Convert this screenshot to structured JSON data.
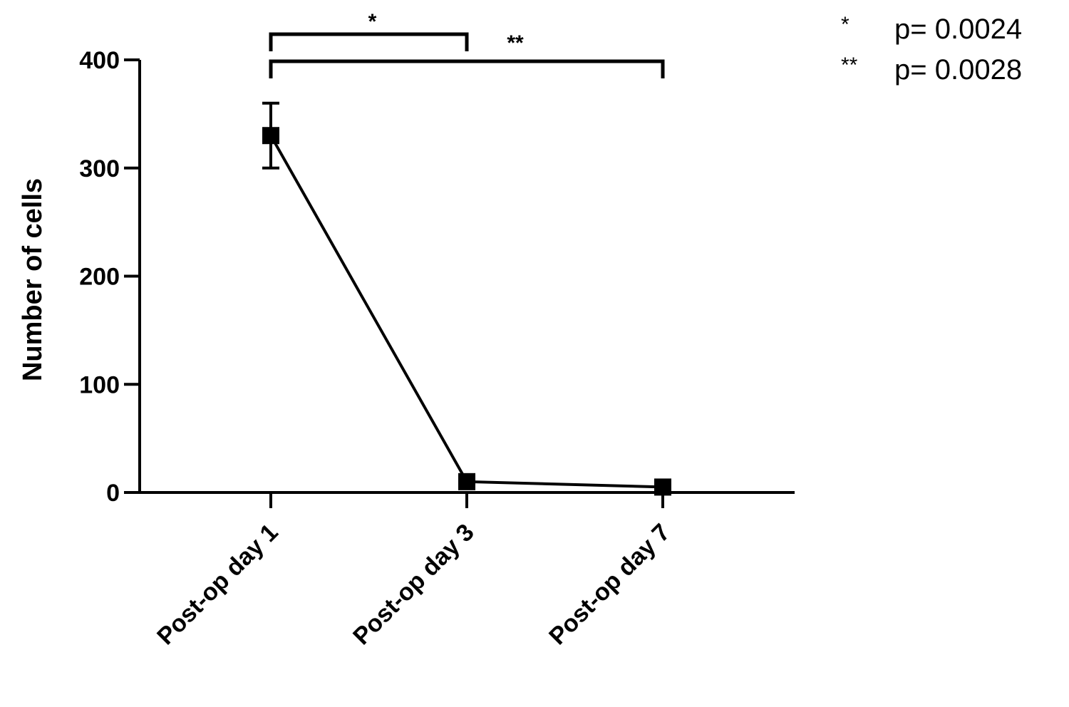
{
  "chart_data": {
    "type": "line",
    "title": "",
    "xlabel": "",
    "ylabel": "Number of cells",
    "ylim": [
      0,
      400
    ],
    "yticks": [
      "0",
      "100",
      "200",
      "300",
      "400"
    ],
    "categories": [
      "Post-op day 1",
      "Post-op day 3",
      "Post-op day 7"
    ],
    "series": [
      {
        "values": [
          330,
          10,
          5
        ],
        "error": [
          30,
          6,
          5
        ]
      }
    ],
    "significance": [
      {
        "from": 0,
        "to": 1,
        "marker": "*"
      },
      {
        "from": 0,
        "to": 2,
        "marker": "**"
      }
    ],
    "legend": [
      {
        "marker": "*",
        "text": "p= 0.0024"
      },
      {
        "marker": "**",
        "text": "p= 0.0028"
      }
    ],
    "grid": false,
    "colors": {
      "line": "#000000",
      "axis": "#000000"
    }
  }
}
